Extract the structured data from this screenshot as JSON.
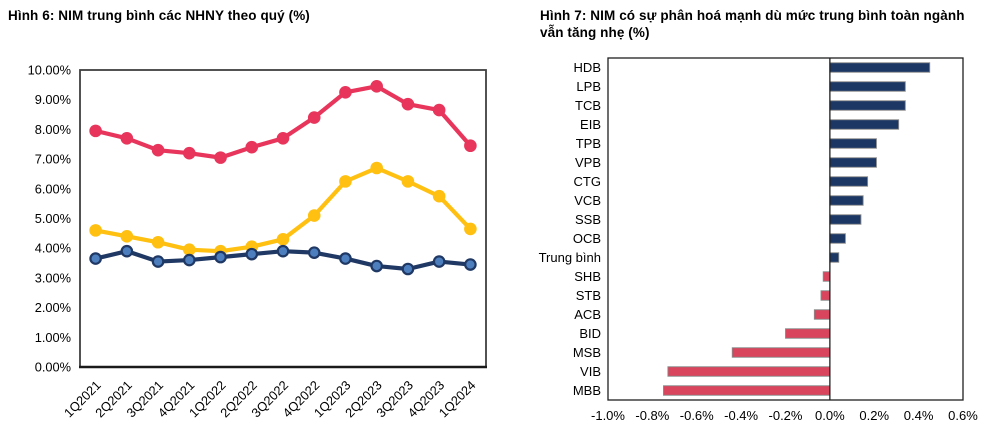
{
  "chart_data": [
    {
      "type": "line",
      "title": "Hình 6: NIM trung bình các NHNY theo quý (%)",
      "categories": [
        "1Q2021",
        "2Q2021",
        "3Q2021",
        "4Q2021",
        "1Q2022",
        "2Q2022",
        "3Q2022",
        "4Q2022",
        "1Q2023",
        "2Q2023",
        "3Q2023",
        "4Q2023",
        "1Q2024"
      ],
      "series": [
        {
          "name": "red-line",
          "color": "#E8355B",
          "marker_fill": "#E8355B",
          "marker_stroke": "#E8355B",
          "values": [
            7.95,
            7.7,
            7.3,
            7.2,
            7.05,
            7.4,
            7.7,
            8.4,
            9.25,
            9.45,
            8.85,
            8.65,
            7.45
          ]
        },
        {
          "name": "yellow-line",
          "color": "#FFC011",
          "marker_fill": "#FFC011",
          "marker_stroke": "#FFC011",
          "values": [
            4.6,
            4.4,
            4.2,
            3.95,
            3.9,
            4.05,
            4.3,
            5.1,
            6.25,
            6.7,
            6.25,
            5.75,
            4.65
          ]
        },
        {
          "name": "navy-line",
          "color": "#1F3864",
          "marker_fill": "#4D7EBE",
          "marker_stroke": "#1F3864",
          "values": [
            3.65,
            3.9,
            3.55,
            3.6,
            3.7,
            3.8,
            3.9,
            3.85,
            3.65,
            3.4,
            3.3,
            3.55,
            3.45
          ]
        }
      ],
      "ylim": [
        0,
        10
      ],
      "ytick_labels": [
        "0.00%",
        "1.00%",
        "2.00%",
        "3.00%",
        "4.00%",
        "5.00%",
        "6.00%",
        "7.00%",
        "8.00%",
        "9.00%",
        "10.00%"
      ],
      "grid": false,
      "legend": "none"
    },
    {
      "type": "bar",
      "orientation": "horizontal",
      "title": "Hình 7: NIM có sự phân hoá mạnh dù mức trung bình toàn ngành vẫn tăng nhẹ (%)",
      "categories": [
        "HDB",
        "LPB",
        "TCB",
        "EIB",
        "TPB",
        "VPB",
        "CTG",
        "VCB",
        "SSB",
        "OCB",
        "Trung bình",
        "SHB",
        "STB",
        "ACB",
        "BID",
        "MSB",
        "VIB",
        "MBB"
      ],
      "values": [
        0.45,
        0.34,
        0.34,
        0.31,
        0.21,
        0.21,
        0.17,
        0.15,
        0.14,
        0.07,
        0.04,
        -0.03,
        -0.04,
        -0.07,
        -0.2,
        -0.44,
        -0.73,
        -0.75
      ],
      "positive_color": "#1C3764",
      "negative_color": "#D8455C",
      "bar_border_color": "#8A8A8A",
      "xlim": [
        -1.0,
        0.6
      ],
      "xtick_labels": [
        "-1.0%",
        "-0.8%",
        "-0.6%",
        "-0.4%",
        "-0.2%",
        "0.0%",
        "0.2%",
        "0.4%",
        "0.6%"
      ],
      "grid": false,
      "legend": "none"
    }
  ]
}
